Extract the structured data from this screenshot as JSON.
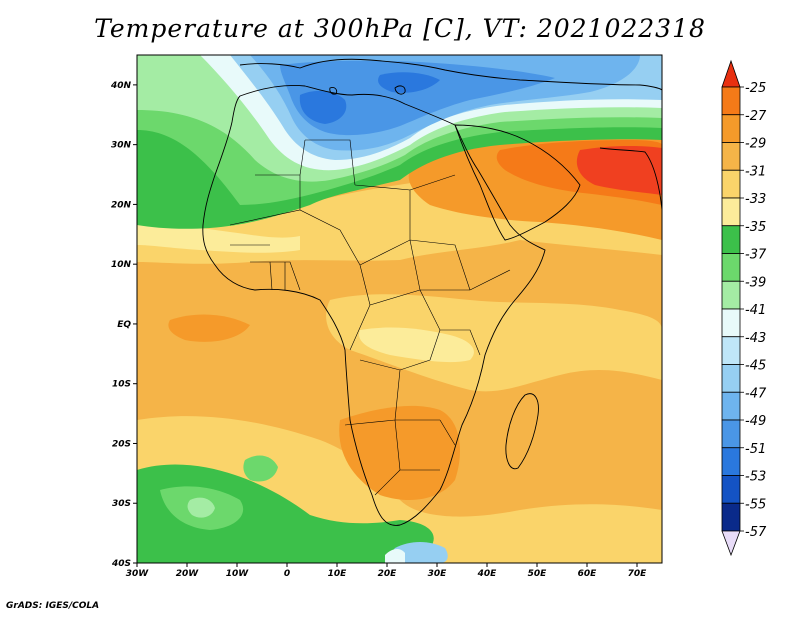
{
  "title": "Temperature at 300hPa [C], VT: 2021022318",
  "credit": "GrADS: IGES/COLA",
  "map": {
    "variable": "Temperature at 300hPa",
    "units": "C",
    "valid_time": "2021022318",
    "region": "Africa",
    "lon_range": [
      -30,
      75
    ],
    "lat_range": [
      -40,
      45
    ],
    "lat_ticks": [
      {
        "value": 40,
        "label": "40N"
      },
      {
        "value": 30,
        "label": "30N"
      },
      {
        "value": 20,
        "label": "20N"
      },
      {
        "value": 10,
        "label": "10N"
      },
      {
        "value": 0,
        "label": "EQ"
      },
      {
        "value": -10,
        "label": "10S"
      },
      {
        "value": -20,
        "label": "20S"
      },
      {
        "value": -30,
        "label": "30S"
      },
      {
        "value": -40,
        "label": "40S"
      }
    ],
    "lon_ticks": [
      {
        "value": -30,
        "label": "30W"
      },
      {
        "value": -20,
        "label": "20W"
      },
      {
        "value": -10,
        "label": "10W"
      },
      {
        "value": 0,
        "label": "0"
      },
      {
        "value": 10,
        "label": "10E"
      },
      {
        "value": 20,
        "label": "20E"
      },
      {
        "value": 30,
        "label": "30E"
      },
      {
        "value": 40,
        "label": "40E"
      },
      {
        "value": 50,
        "label": "50E"
      },
      {
        "value": 60,
        "label": "60E"
      },
      {
        "value": 70,
        "label": "70E"
      }
    ]
  },
  "colorbar": {
    "labels": [
      "-25",
      "-27",
      "-29",
      "-31",
      "-33",
      "-35",
      "-37",
      "-39",
      "-41",
      "-43",
      "-45",
      "-47",
      "-49",
      "-51",
      "-53",
      "-55",
      "-57"
    ],
    "colors": [
      "#f04020",
      "#f57a18",
      "#f59a2a",
      "#f5b448",
      "#fad46a",
      "#fcec9a",
      "#3cc04a",
      "#6cd86c",
      "#a4eca4",
      "#e8fafa",
      "#bfe6f8",
      "#96cff2",
      "#6eb4ee",
      "#4a96e6",
      "#2a78de",
      "#1453c4",
      "#0a2a8a",
      "#0a0a60"
    ],
    "over_color": "#e83010",
    "under_color": "#e8dcf8"
  }
}
